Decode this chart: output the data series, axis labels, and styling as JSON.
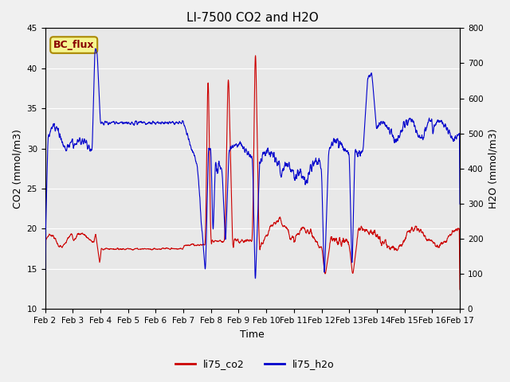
{
  "title": "LI-7500 CO2 and H2O",
  "xlabel": "Time",
  "ylabel_left": "CO2 (mmol/m3)",
  "ylabel_right": "H2O (mmol/m3)",
  "ylim_left": [
    10,
    45
  ],
  "ylim_right": [
    0,
    800
  ],
  "legend_label1": "li75_co2",
  "legend_label2": "li75_h2o",
  "annotation_text": "BC_flux",
  "color_co2": "#cc0000",
  "color_h2o": "#0000cc",
  "line_width": 0.8,
  "title_fontsize": 11,
  "axis_fontsize": 9,
  "tick_fontsize": 7.5,
  "legend_fontsize": 9,
  "background_color": "#f0f0f0",
  "plot_bg_color": "#e8e8e8",
  "grid_color": "#ffffff"
}
